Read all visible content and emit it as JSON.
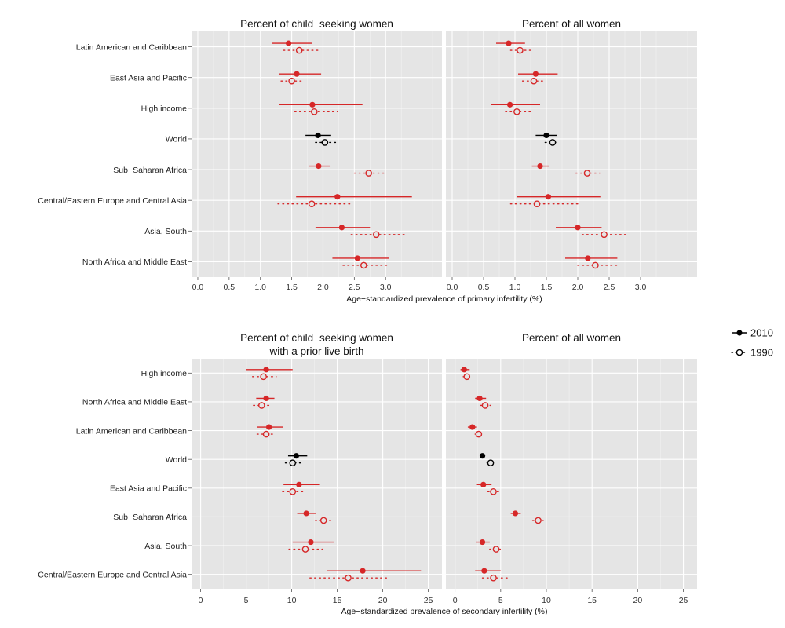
{
  "colors": {
    "region": "#d62728",
    "world": "#000000",
    "panel_bg": "#e5e5e5",
    "grid": "#ffffff"
  },
  "legend": {
    "entries": [
      {
        "label": "2010",
        "style": "solid-filled"
      },
      {
        "label": "1990",
        "style": "dotted-open"
      }
    ]
  },
  "chart_data": [
    {
      "type": "dot-interval",
      "group": "primary infertility",
      "xlabel": "Age−standardized prevalence of primary infertility (%)",
      "categories": [
        "Latin American and Caribbean",
        "East Asia and Pacific",
        "High income",
        "World",
        "Sub−Saharan Africa",
        "Central/Eastern Europe and Central Asia",
        "Asia, South",
        "North Africa and Middle East"
      ],
      "xlim": [
        -0.1,
        3.9
      ],
      "xticks": [
        "0.0",
        "0.5",
        "1.0",
        "1.5",
        "2.0",
        "2.5",
        "3.0"
      ],
      "panels": [
        {
          "title": "Percent of child−seeking women",
          "series": [
            {
              "name": "2010",
              "values": [
                1.45,
                1.58,
                1.83,
                1.92,
                1.93,
                2.23,
                2.3,
                2.55
              ],
              "lower": [
                1.18,
                1.3,
                1.3,
                1.72,
                1.77,
                1.57,
                1.88,
                2.15
              ],
              "upper": [
                1.83,
                1.97,
                2.63,
                2.13,
                2.12,
                3.42,
                2.75,
                3.05
              ]
            },
            {
              "name": "1990",
              "values": [
                1.62,
                1.5,
                1.86,
                2.03,
                2.73,
                1.82,
                2.85,
                2.65
              ],
              "lower": [
                1.37,
                1.33,
                1.55,
                1.88,
                2.5,
                1.28,
                2.45,
                2.32
              ],
              "upper": [
                1.95,
                1.68,
                2.23,
                2.2,
                2.98,
                2.48,
                3.35,
                3.05
              ]
            }
          ]
        },
        {
          "title": "Percent of all women",
          "series": [
            {
              "name": "2010",
              "values": [
                0.9,
                1.33,
                0.92,
                1.5,
                1.4,
                1.53,
                2.0,
                2.16
              ],
              "lower": [
                0.7,
                1.05,
                0.62,
                1.33,
                1.27,
                1.03,
                1.65,
                1.8
              ],
              "upper": [
                1.16,
                1.68,
                1.4,
                1.67,
                1.55,
                2.36,
                2.38,
                2.63
              ]
            },
            {
              "name": "1990",
              "values": [
                1.08,
                1.3,
                1.03,
                1.6,
                2.15,
                1.35,
                2.42,
                2.28
              ],
              "lower": [
                0.93,
                1.12,
                0.85,
                1.48,
                1.97,
                0.93,
                2.07,
                2.0
              ],
              "upper": [
                1.28,
                1.47,
                1.26,
                1.7,
                2.35,
                2.03,
                2.8,
                2.67
              ]
            }
          ]
        }
      ]
    },
    {
      "type": "dot-interval",
      "group": "secondary infertility",
      "xlabel": "Age−standardized prevalence of secondary infertility (%)",
      "categories": [
        "High income",
        "North Africa and Middle East",
        "Latin American and Caribbean",
        "World",
        "East Asia and Pacific",
        "Sub−Saharan Africa",
        "Asia, South",
        "Central/Eastern Europe and Central Asia"
      ],
      "xlim": [
        -1,
        26.5
      ],
      "xticks": [
        "0",
        "5",
        "10",
        "15",
        "20",
        "25"
      ],
      "panels": [
        {
          "title": "Percent of child−seeking women",
          "subtitle": "with a prior live birth",
          "series": [
            {
              "name": "2010",
              "values": [
                7.2,
                7.2,
                7.5,
                10.5,
                10.8,
                11.6,
                12.1,
                17.8
              ],
              "lower": [
                5.0,
                6.1,
                6.2,
                9.6,
                9.1,
                10.6,
                10.1,
                13.9
              ],
              "upper": [
                10.1,
                8.1,
                9.0,
                11.7,
                13.1,
                12.7,
                14.6,
                24.2
              ]
            },
            {
              "name": "1990",
              "values": [
                6.9,
                6.7,
                7.2,
                10.1,
                10.1,
                13.5,
                11.5,
                16.2
              ],
              "lower": [
                5.7,
                5.8,
                6.2,
                9.3,
                9.0,
                12.6,
                9.7,
                12.0
              ],
              "upper": [
                8.3,
                7.6,
                8.2,
                11.0,
                11.3,
                14.3,
                13.4,
                20.7
              ]
            }
          ]
        },
        {
          "title": "Percent of all women",
          "series": [
            {
              "name": "2010",
              "values": [
                1.0,
                2.7,
                1.9,
                3.0,
                3.1,
                6.6,
                3.0,
                3.2
              ],
              "lower": [
                0.6,
                2.2,
                1.4,
                2.7,
                2.4,
                6.1,
                2.3,
                2.2
              ],
              "upper": [
                1.6,
                3.4,
                2.4,
                3.3,
                4.0,
                7.2,
                3.8,
                5.0
              ]
            },
            {
              "name": "1990",
              "values": [
                1.3,
                3.3,
                2.6,
                3.9,
                4.2,
                9.1,
                4.5,
                4.2
              ],
              "lower": [
                0.9,
                2.8,
                2.2,
                3.5,
                3.6,
                8.5,
                3.8,
                3.0
              ],
              "upper": [
                1.7,
                3.9,
                3.0,
                4.3,
                4.9,
                9.8,
                5.3,
                5.9
              ]
            }
          ]
        }
      ]
    }
  ]
}
